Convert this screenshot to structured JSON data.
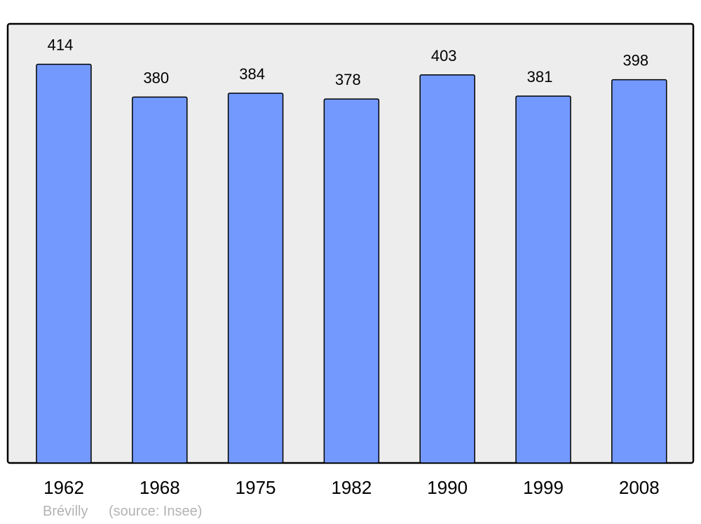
{
  "chart_data": {
    "type": "bar",
    "title": "",
    "xlabel": "",
    "ylabel": "",
    "categories": [
      "1962",
      "1968",
      "1975",
      "1982",
      "1990",
      "1999",
      "2008"
    ],
    "values": [
      414,
      380,
      384,
      378,
      403,
      381,
      398
    ],
    "data_labels": [
      "414",
      "380",
      "384",
      "378",
      "403",
      "381",
      "398"
    ],
    "ylim": [
      0,
      456
    ],
    "grid": false,
    "colors": {
      "bar": "#7399ff",
      "background": "#ededed",
      "border": "#000000"
    }
  },
  "footer": {
    "place": "Brévilly",
    "source": "(source: Insee)"
  }
}
